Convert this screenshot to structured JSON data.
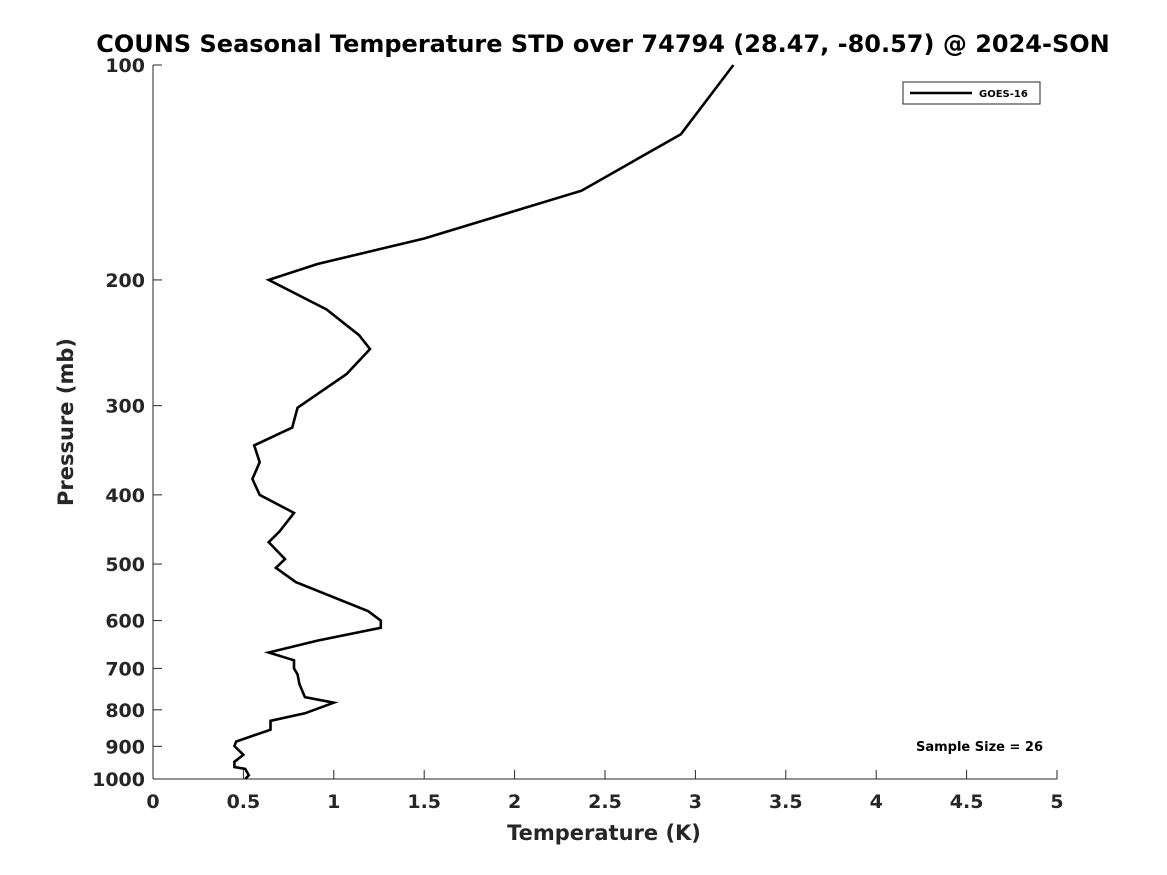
{
  "chart_data": {
    "type": "line",
    "title": "COUNS Seasonal Temperature STD over 74794 (28.47, -80.57) @ 2024-SON",
    "xlabel": "Temperature (K)",
    "ylabel": "Pressure (mb)",
    "xlim": [
      0,
      5
    ],
    "ylim": [
      100,
      1000
    ],
    "y_scale": "log",
    "y_reversed": true,
    "x_ticks": [
      0,
      0.5,
      1,
      1.5,
      2,
      2.5,
      3,
      3.5,
      4,
      4.5,
      5
    ],
    "x_tick_labels": [
      "0",
      "0.5",
      "1",
      "1.5",
      "2",
      "2.5",
      "3",
      "3.5",
      "4",
      "4.5",
      "5"
    ],
    "y_ticks": [
      100,
      200,
      300,
      400,
      500,
      600,
      700,
      800,
      900,
      1000
    ],
    "y_tick_labels": [
      "100",
      "200",
      "300",
      "400",
      "500",
      "600",
      "700",
      "800",
      "900",
      "1000"
    ],
    "grid": false,
    "legend_position": "top-right",
    "annotation": "Sample Size = 26",
    "series": [
      {
        "name": "GOES-16",
        "color": "#000000",
        "points": [
          [
            3.21,
            100
          ],
          [
            2.92,
            125
          ],
          [
            2.37,
            150
          ],
          [
            1.5,
            175
          ],
          [
            0.91,
            190
          ],
          [
            0.64,
            200
          ],
          [
            0.96,
            220
          ],
          [
            1.14,
            239
          ],
          [
            1.2,
            250
          ],
          [
            1.07,
            271
          ],
          [
            0.8,
            302
          ],
          [
            0.77,
            322
          ],
          [
            0.56,
            341
          ],
          [
            0.59,
            360
          ],
          [
            0.55,
            380
          ],
          [
            0.59,
            400
          ],
          [
            0.78,
            424
          ],
          [
            0.7,
            450
          ],
          [
            0.64,
            466
          ],
          [
            0.73,
            492
          ],
          [
            0.68,
            506
          ],
          [
            0.79,
            530
          ],
          [
            1.19,
            582
          ],
          [
            1.26,
            600
          ],
          [
            1.26,
            614
          ],
          [
            0.91,
            640
          ],
          [
            0.64,
            665
          ],
          [
            0.78,
            682
          ],
          [
            0.78,
            700
          ],
          [
            0.8,
            714
          ],
          [
            0.81,
            736
          ],
          [
            0.84,
            768
          ],
          [
            1.0,
            782
          ],
          [
            0.84,
            809
          ],
          [
            0.65,
            829
          ],
          [
            0.65,
            853
          ],
          [
            0.46,
            886
          ],
          [
            0.45,
            899
          ],
          [
            0.5,
            925
          ],
          [
            0.45,
            946
          ],
          [
            0.45,
            962
          ],
          [
            0.51,
            968
          ],
          [
            0.53,
            988
          ],
          [
            0.51,
            1000
          ]
        ]
      }
    ]
  }
}
